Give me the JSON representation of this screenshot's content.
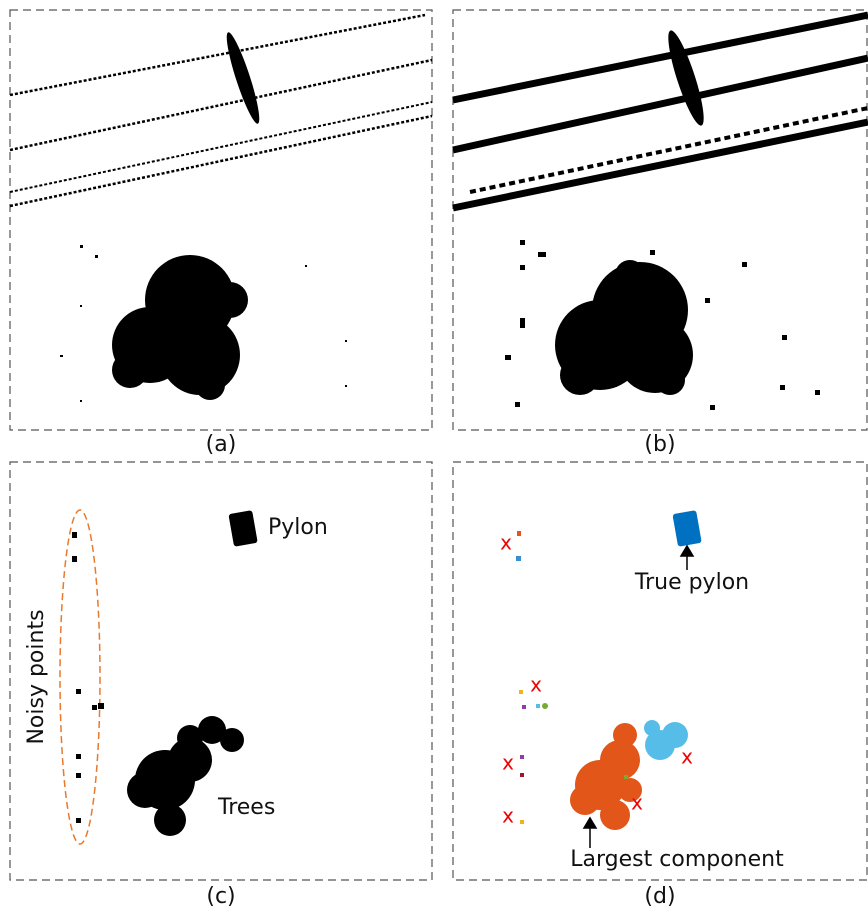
{
  "captions": [
    "(a)",
    "(b)",
    "(c)",
    "(d)"
  ],
  "panel_c": {
    "noisy_label": "Noisy points",
    "pylon_label": "Pylon",
    "trees_label": "Trees"
  },
  "panel_d": {
    "pylon_label": "True pylon",
    "largest_label": "Largest component",
    "rejects": [
      "x",
      "x",
      "x",
      "x",
      "x",
      "x"
    ]
  }
}
